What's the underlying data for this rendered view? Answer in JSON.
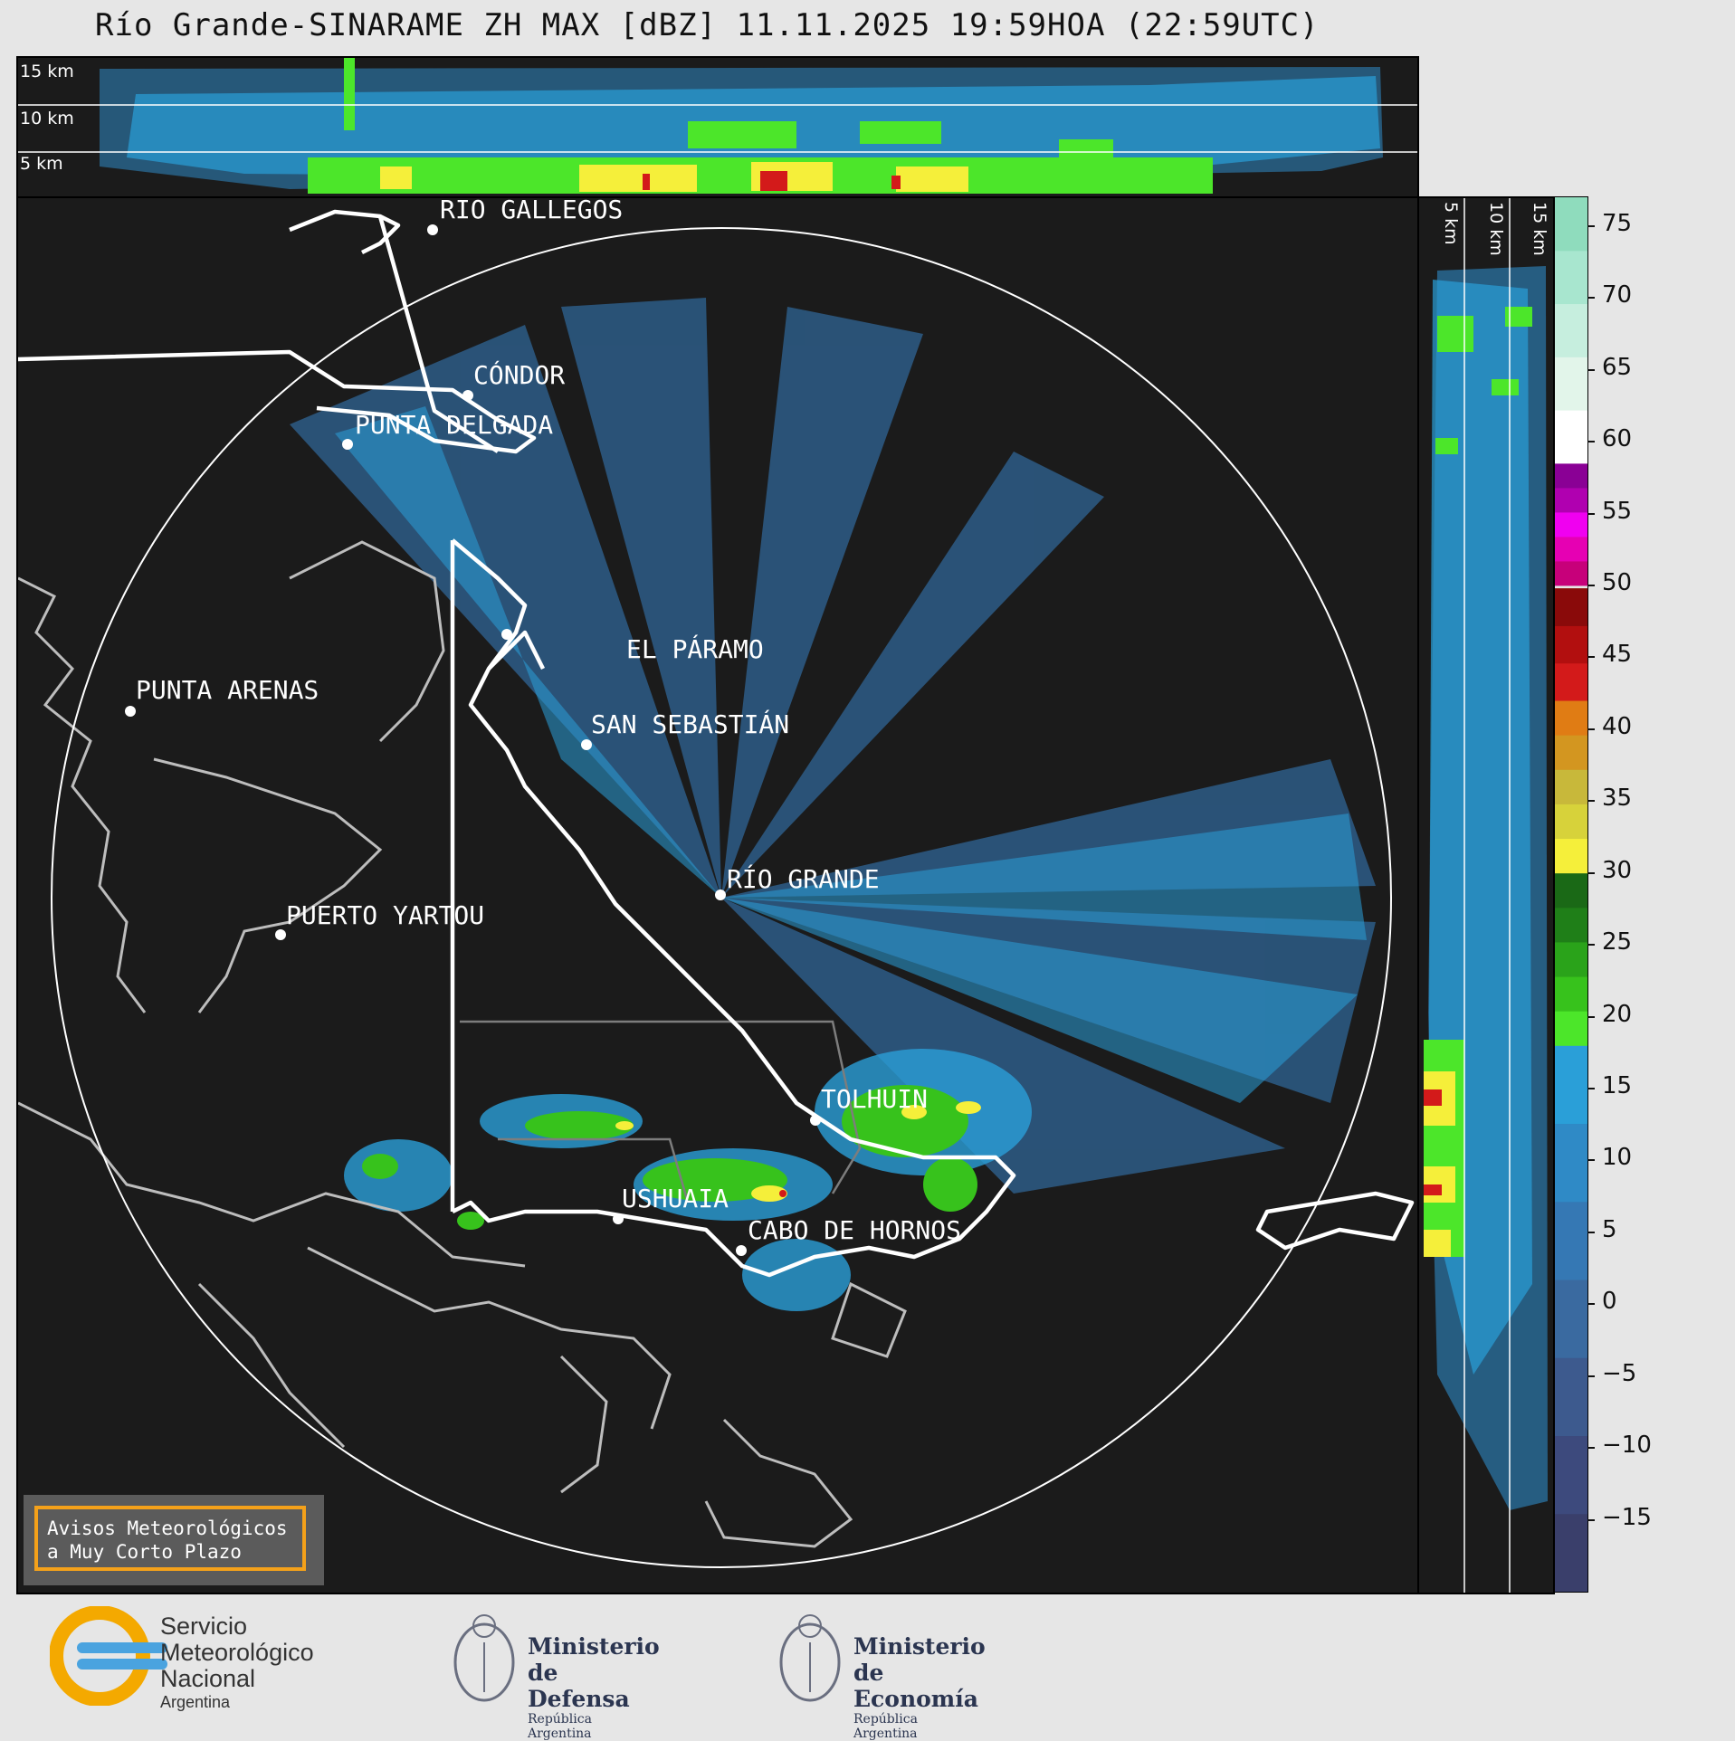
{
  "title": "Río Grande-SINARAME ZH MAX [dBZ] 11.11.2025 19:59HOA (22:59UTC)",
  "top_panel": {
    "height_labels": [
      "15 km",
      "10 km",
      "5 km"
    ]
  },
  "side_panel": {
    "height_labels": [
      "5 km",
      "10 km",
      "15 km"
    ]
  },
  "cities": [
    {
      "name": "RÍO GALLEGOS"
    },
    {
      "name": "CÓNDOR"
    },
    {
      "name": "PUNTA DELGADA"
    },
    {
      "name": "EL PÁRAMO"
    },
    {
      "name": "SAN SEBASTIÁN"
    },
    {
      "name": "PUNTA ARENAS"
    },
    {
      "name": "RÍO GRANDE"
    },
    {
      "name": "PUERTO YARTOU"
    },
    {
      "name": "TOLHUIN"
    },
    {
      "name": "USHUAIA"
    },
    {
      "name": "CABO DE HORNOS"
    }
  ],
  "colorbar": {
    "unit": "dBZ",
    "ticks": [
      "75",
      "70",
      "65",
      "60",
      "55",
      "50",
      "45",
      "40",
      "35",
      "30",
      "25",
      "20",
      "15",
      "10",
      "5",
      "0",
      "−5",
      "−10",
      "−15"
    ],
    "range": [
      -20,
      77
    ],
    "colors": {
      "blues": [
        "#3a3f6b",
        "#3d4a7d",
        "#3d5a8e",
        "#3a6aa0",
        "#3578b4",
        "#2f8ac6",
        "#2a9fd8"
      ],
      "greens": [
        "#4ce62a",
        "#37c21c",
        "#2aa31a",
        "#1f7f18",
        "#1a6916"
      ],
      "yellows": [
        "#f5ef3a",
        "#d7d23a",
        "#c8b83a",
        "#d39620",
        "#e07c14"
      ],
      "reds": [
        "#d31a1a",
        "#b20f0f",
        "#8a0a0a"
      ],
      "magentas": [
        "#c7007a",
        "#e600b3",
        "#f000f0",
        "#b000b0",
        "#8a0095"
      ],
      "whites": [
        "#ffffff",
        "#e2f5ea",
        "#c6eede",
        "#a8e6cf",
        "#8fdcbd"
      ]
    }
  },
  "notice": {
    "line1": "Avisos Meteorológicos",
    "line2": "a Muy Corto Plazo"
  },
  "logos": {
    "smn": {
      "line1": "Servicio",
      "line2": "Meteorológico",
      "line3": "Nacional",
      "line4": "Argentina"
    },
    "defensa": {
      "line1": "Ministerio",
      "line2": "de Defensa",
      "line3": "República Argentina"
    },
    "economia": {
      "line1": "Ministerio",
      "line2": "de Economía",
      "line3": "República Argentina"
    }
  }
}
